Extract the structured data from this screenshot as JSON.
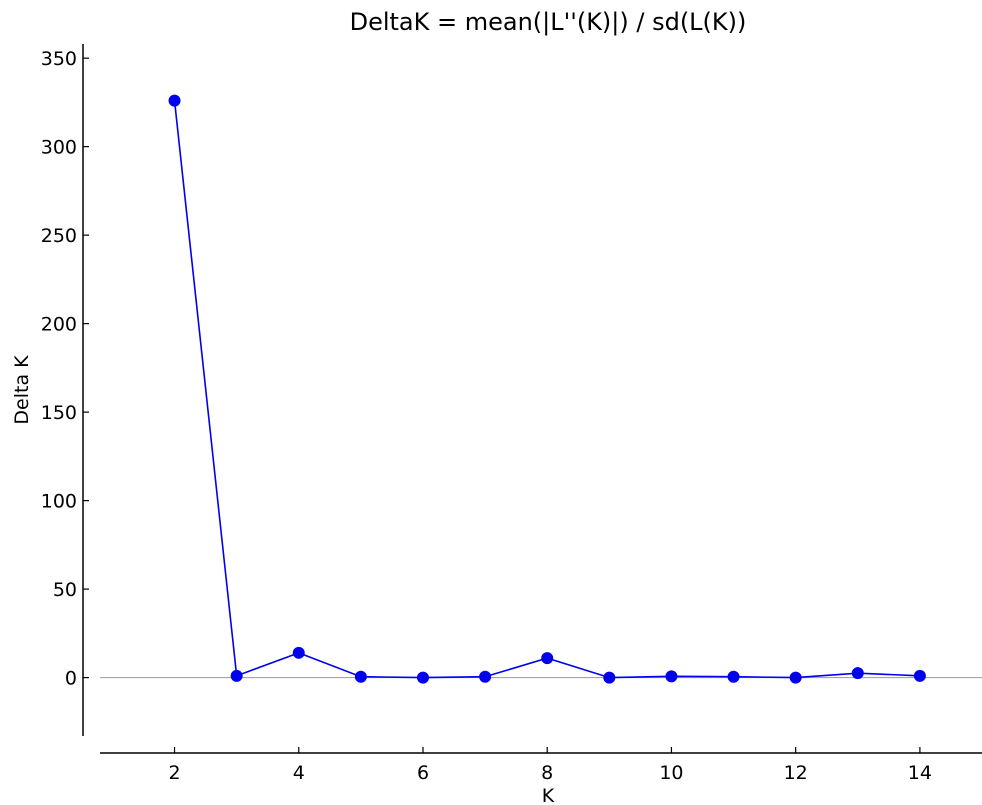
{
  "chart_data": {
    "type": "line",
    "title": "DeltaK = mean(|L''(K)|) / sd(L(K))",
    "xlabel": "K",
    "ylabel": "Delta K",
    "xlim": [
      0.8,
      15
    ],
    "ylim": [
      -33,
      358
    ],
    "x_ticks": [
      2,
      4,
      6,
      8,
      10,
      12,
      14
    ],
    "y_ticks": [
      0,
      50,
      100,
      150,
      200,
      250,
      300,
      350
    ],
    "zero_reference_line": true,
    "grid": false,
    "legend": "none",
    "series": [
      {
        "color": "#0000ee",
        "marker": "circle",
        "points": [
          {
            "x": 2,
            "y": 326
          },
          {
            "x": 3,
            "y": 1
          },
          {
            "x": 4,
            "y": 14
          },
          {
            "x": 5,
            "y": 0.5
          },
          {
            "x": 6,
            "y": 0
          },
          {
            "x": 7,
            "y": 0.5
          },
          {
            "x": 8,
            "y": 11
          },
          {
            "x": 9,
            "y": 0
          },
          {
            "x": 10,
            "y": 0.7
          },
          {
            "x": 11,
            "y": 0.5
          },
          {
            "x": 12,
            "y": 0
          },
          {
            "x": 13,
            "y": 2.5
          },
          {
            "x": 14,
            "y": 1
          }
        ]
      }
    ],
    "reference_line_color": "#999999"
  }
}
